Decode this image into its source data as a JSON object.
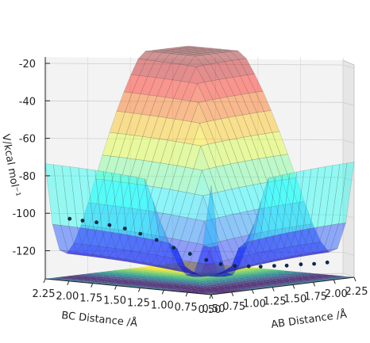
{
  "chart_data": {
    "type": "surface3d",
    "title": "",
    "zlabel": "V/kcal mol⁻¹",
    "xlabel": "AB Distance /Å",
    "ylabel": "BC Distance /Å",
    "z_ticks": [
      "-20",
      "-40",
      "-60",
      "-80",
      "-100",
      "-120"
    ],
    "x_ticks": [
      "0.50",
      "0.75",
      "1.00",
      "1.25",
      "1.50",
      "1.75",
      "2.00",
      "2.25"
    ],
    "y_ticks": [
      "2.25",
      "2.00",
      "1.75",
      "1.50",
      "1.25",
      "1.00",
      "0.75",
      "0.50"
    ],
    "xlim": [
      0.5,
      2.25
    ],
    "ylim": [
      0.5,
      2.25
    ],
    "zlim": [
      -135,
      -20
    ],
    "grid": true,
    "surface_colormap": "jet",
    "contour_colormap": "viridis",
    "trajectory": {
      "AB": [
        0.74,
        0.76,
        0.79,
        0.81,
        0.86,
        0.91,
        0.97,
        1.04,
        1.1,
        1.16,
        1.22,
        1.3,
        1.4,
        1.5,
        1.62,
        1.75,
        1.9,
        2.05,
        2.2
      ],
      "BC": [
        2.2,
        2.08,
        1.96,
        1.84,
        1.72,
        1.6,
        1.48,
        1.36,
        1.24,
        1.12,
        1.02,
        0.94,
        0.88,
        0.84,
        0.8,
        0.78,
        0.76,
        0.75,
        0.74
      ],
      "V": [
        -104,
        -104.5,
        -105,
        -106,
        -107.5,
        -110,
        -113,
        -117,
        -120,
        -123,
        -125,
        -126,
        -126.5,
        -127,
        -127,
        -127.5,
        -127.5,
        -128,
        -128
      ]
    }
  }
}
